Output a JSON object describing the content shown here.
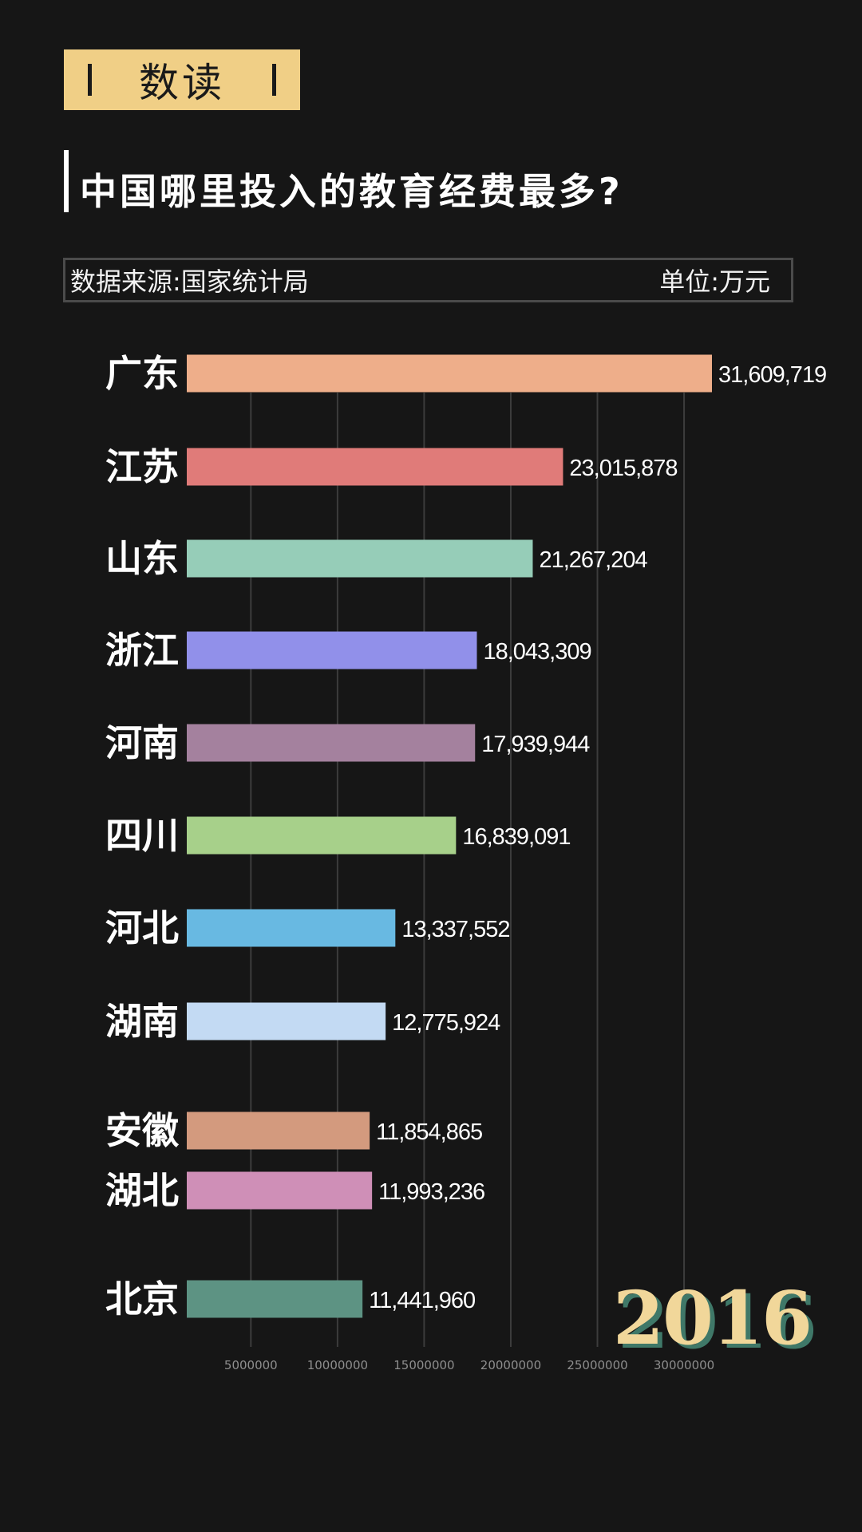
{
  "header": {
    "badge_label": "数读",
    "title": "中国哪里投入的教育经费最多?",
    "source": "数据来源:国家统计局",
    "unit": "单位:万元"
  },
  "year": "2016",
  "chart_data": {
    "type": "bar",
    "orientation": "horizontal",
    "categories": [
      "广东",
      "江苏",
      "山东",
      "浙江",
      "河南",
      "四川",
      "河北",
      "湖南",
      "安徽",
      "湖北",
      "北京"
    ],
    "values": [
      31609719,
      23015878,
      21267204,
      18043309,
      17939944,
      16839091,
      13337552,
      12775924,
      11854865,
      11993236,
      11441960
    ],
    "value_labels": [
      "31,609,719",
      "23,015,878",
      "21,267,204",
      "18,043,309",
      "17,939,944",
      "16,839,091",
      "13,337,552",
      "12,775,924",
      "11,854,865",
      "11,993,236",
      "11,441,960"
    ],
    "colors": [
      "#eeae8a",
      "#e07b79",
      "#96cdb8",
      "#9190ea",
      "#a4819e",
      "#a7d08a",
      "#68b9e2",
      "#c3daf3",
      "#d39a7e",
      "#cf8fb7",
      "#5d9383"
    ],
    "xaxis": {
      "ticks": [
        5000000,
        10000000,
        15000000,
        20000000,
        25000000,
        30000000
      ],
      "tick_labels": [
        "5000000",
        "10000000",
        "15000000",
        "20000000",
        "25000000",
        "30000000"
      ],
      "range": [
        1300000,
        31609719
      ]
    },
    "title": "中国哪里投入的教育经费最多?",
    "unit": "万元",
    "grid": true
  }
}
